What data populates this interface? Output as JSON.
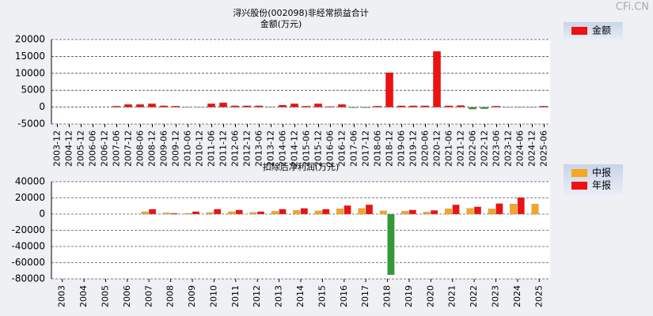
{
  "watermark": "CFi.CN",
  "chart_data": [
    {
      "type": "bar",
      "title": "浔兴股份(002098)非经常损益合计",
      "ylabel": "金额(万元)",
      "categories": [
        "2003-12",
        "2004-12",
        "2005-12",
        "2006-06",
        "2006-12",
        "2007-06",
        "2007-12",
        "2008-06",
        "2008-12",
        "2009-06",
        "2009-12",
        "2010-06",
        "2010-12",
        "2011-06",
        "2011-12",
        "2012-06",
        "2012-12",
        "2013-06",
        "2013-12",
        "2014-06",
        "2014-12",
        "2015-06",
        "2015-12",
        "2016-06",
        "2016-12",
        "2017-06",
        "2017-12",
        "2018-06",
        "2018-12",
        "2019-06",
        "2019-12",
        "2020-06",
        "2020-12",
        "2021-06",
        "2021-12",
        "2022-06",
        "2022-12",
        "2023-06",
        "2023-12",
        "2024-06",
        "2024-12",
        "2025-06"
      ],
      "series": [
        {
          "name": "金额",
          "color": "#ee1111",
          "negative_color": "#339933",
          "values": [
            null,
            null,
            null,
            null,
            null,
            300,
            800,
            800,
            1000,
            400,
            300,
            -100,
            -100,
            1000,
            1300,
            400,
            400,
            400,
            100,
            600,
            1000,
            300,
            1000,
            200,
            800,
            -200,
            -200,
            300,
            10200,
            400,
            400,
            400,
            16500,
            400,
            500,
            -600,
            -500,
            300,
            -100,
            -100,
            -100,
            300
          ]
        }
      ],
      "ylim": [
        -5000,
        20000
      ],
      "yticks": [
        -5000,
        0,
        5000,
        10000,
        15000,
        20000
      ],
      "grid": true
    },
    {
      "type": "bar",
      "title": "扣除后净利润(万元)",
      "categories": [
        "2003",
        "2004",
        "2005",
        "2006",
        "2007",
        "2008",
        "2009",
        "2010",
        "2011",
        "2012",
        "2013",
        "2014",
        "2015",
        "2016",
        "2017",
        "2018",
        "2019",
        "2020",
        "2021",
        "2022",
        "2023",
        "2024",
        "2025"
      ],
      "series": [
        {
          "name": "中报",
          "color": "#f5a623",
          "negative_color": "#339933",
          "values": [
            null,
            null,
            null,
            null,
            3000,
            1500,
            1000,
            2000,
            3000,
            2000,
            3500,
            4500,
            4000,
            6500,
            7000,
            4000,
            3500,
            2500,
            6500,
            7000,
            6500,
            12500,
            12500
          ]
        },
        {
          "name": "年报",
          "color": "#ee1111",
          "negative_color": "#339933",
          "values": [
            null,
            null,
            null,
            null,
            6000,
            1000,
            3000,
            6000,
            5000,
            3000,
            6000,
            7000,
            6000,
            10500,
            11500,
            -75000,
            5000,
            4500,
            11500,
            9000,
            13000,
            20500,
            null
          ]
        }
      ],
      "ylim": [
        -80000,
        40000
      ],
      "yticks": [
        -80000,
        -60000,
        -40000,
        -20000,
        0,
        20000,
        40000
      ],
      "grid": true
    }
  ]
}
